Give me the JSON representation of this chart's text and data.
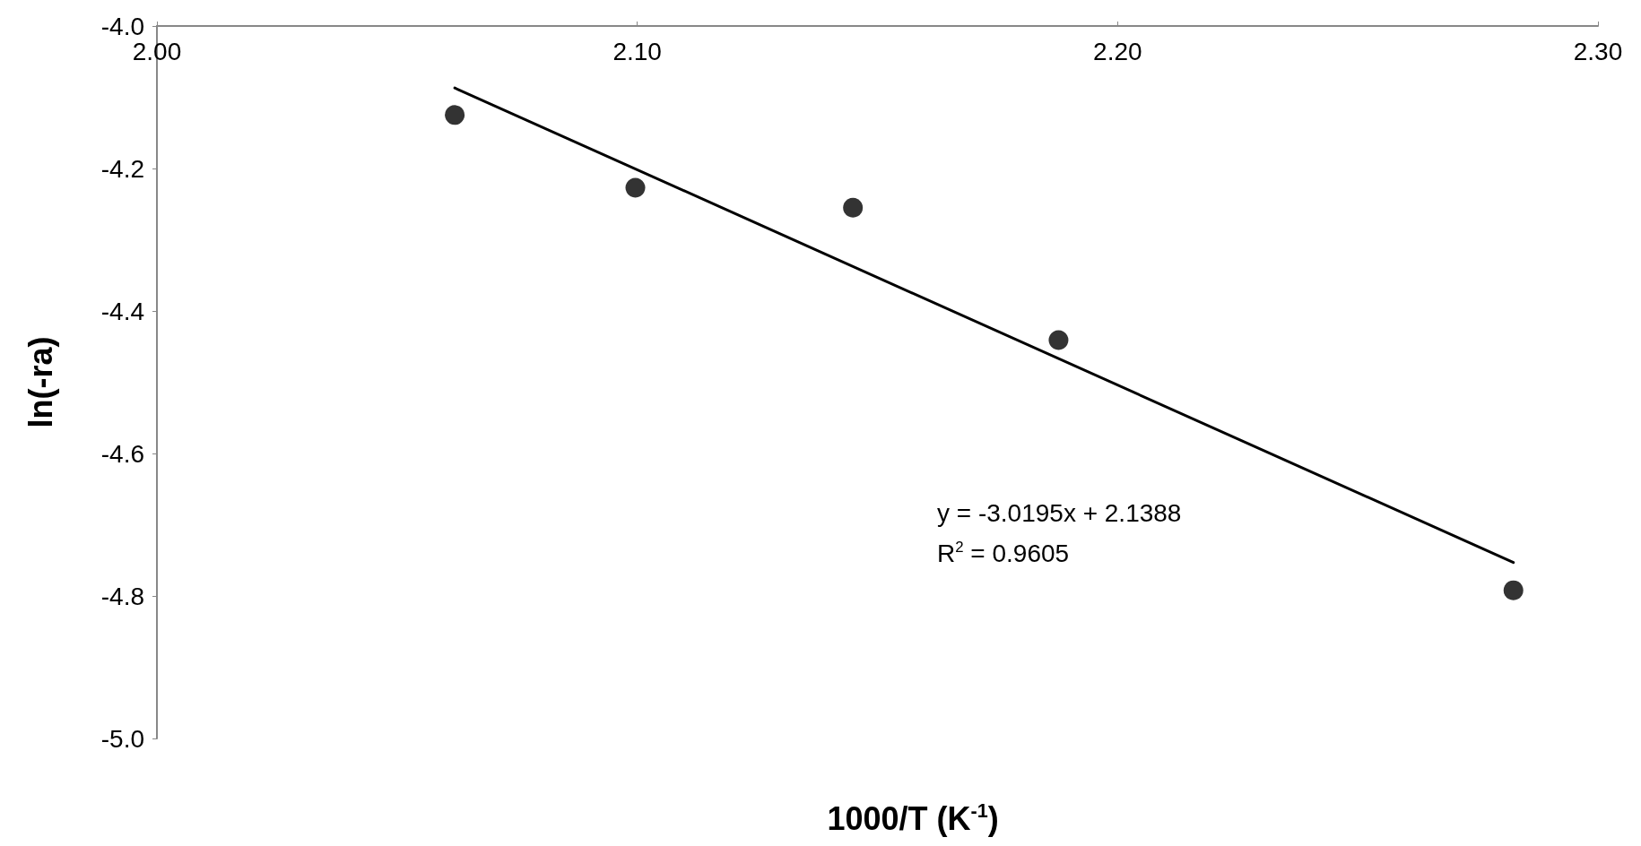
{
  "chart_data": {
    "type": "scatter",
    "xlabel": "1000/T (K$^{-1}$)",
    "ylabel": "ln(-ra)",
    "x": [
      2.062,
      2.0996,
      2.1449,
      2.1877,
      2.2824
    ],
    "series": [
      {
        "type": "scatter",
        "color": "#000000",
        "marker": "circle",
        "values": [
          -4.125,
          -4.227,
          -4.255,
          -4.441,
          -4.792
        ]
      },
      {
        "type": "line",
        "color": "#000000",
        "marker": "none",
        "line_style": "solid",
        "x": [
          2.062,
          2.2824
        ],
        "values": [
          -4.087,
          -4.753
        ]
      }
    ],
    "xlim": [
      2.0,
      2.3
    ],
    "ylim": [
      -5.0,
      -4.0
    ],
    "xticks": [
      {
        "value": 2.0,
        "label": "2.00"
      },
      {
        "value": 2.1,
        "label": "2.10"
      },
      {
        "value": 2.2,
        "label": "2.20"
      },
      {
        "value": 2.3,
        "label": "2.30"
      }
    ],
    "yticks": [
      {
        "value": -5.0,
        "label": "-5.0"
      },
      {
        "value": -4.8,
        "label": "-4.8"
      },
      {
        "value": -4.6,
        "label": "-4.6"
      },
      {
        "value": -4.4,
        "label": "-4.4"
      },
      {
        "value": -4.2,
        "label": "-4.2"
      },
      {
        "value": -4.0,
        "label": "-4.0"
      }
    ],
    "annotations": [
      "y = -3.0195x + 2.1388",
      "R$^{2}$ = 0.9605"
    ],
    "grid": false
  }
}
